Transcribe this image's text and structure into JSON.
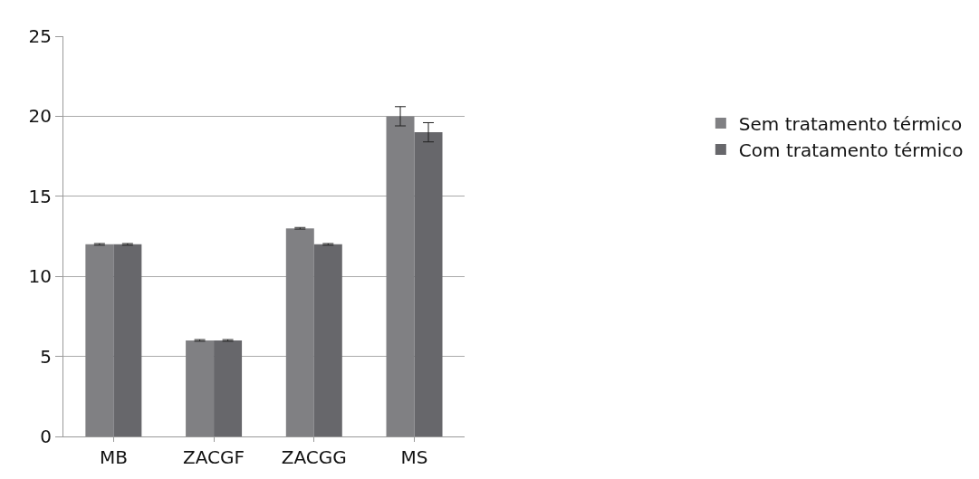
{
  "chart_data": {
    "type": "bar",
    "categories": [
      "MB",
      "ZACGF",
      "ZACGG",
      "MS"
    ],
    "series": [
      {
        "name": "Sem tratamento térmico",
        "color": "#808083",
        "values": [
          12,
          6,
          13,
          20
        ],
        "errors": [
          0.05,
          0.05,
          0.05,
          0.6
        ]
      },
      {
        "name": "Com tratamento térmico",
        "color": "#67676b",
        "values": [
          12,
          6,
          12,
          19
        ],
        "errors": [
          0.05,
          0.05,
          0.05,
          0.6
        ]
      }
    ],
    "ylim": [
      0,
      25
    ],
    "yticks": [
      0,
      5,
      10,
      15,
      20,
      25
    ],
    "grid": "y",
    "legend": "right"
  }
}
